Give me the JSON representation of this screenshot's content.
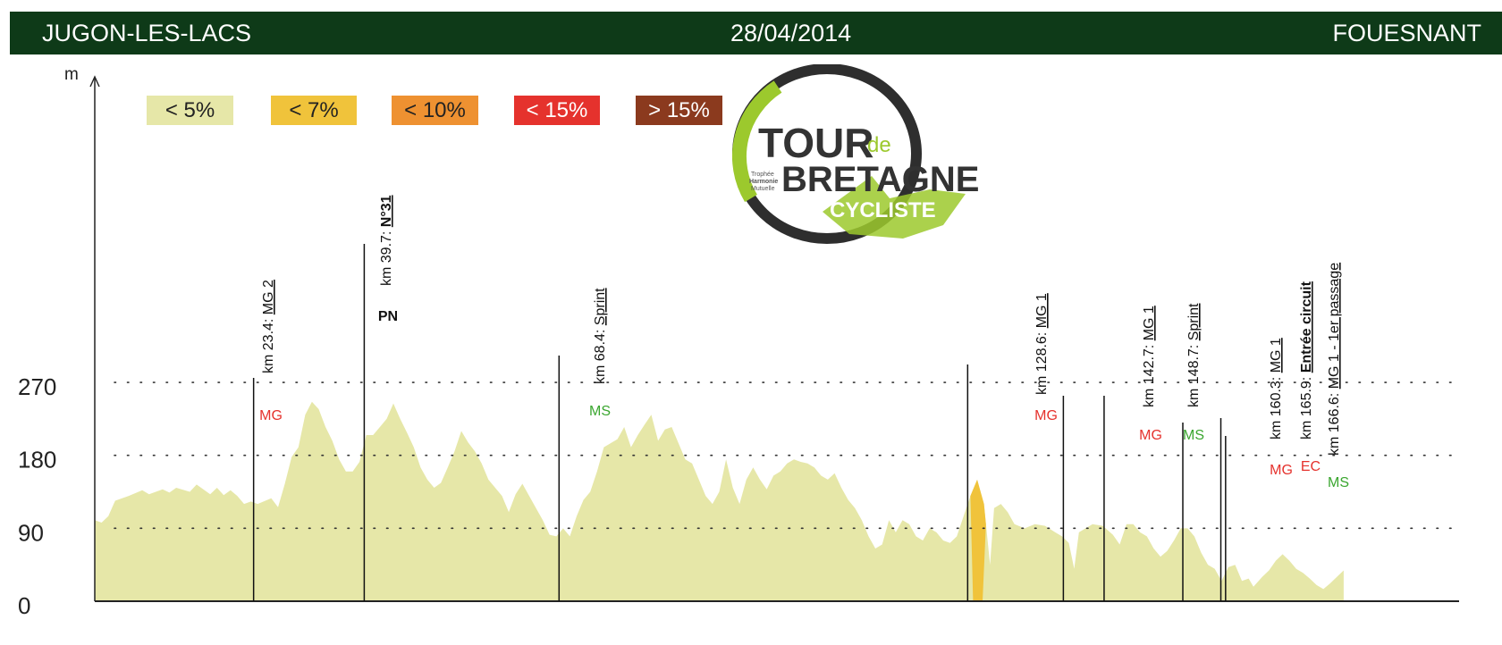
{
  "header": {
    "start": "JUGON-LES-LACS",
    "date": "28/04/2014",
    "finish": "FOUESNANT"
  },
  "colors": {
    "header_bg": "#0e3a18",
    "profile": "#e6e7a8",
    "steep_segment": "#f0c33b",
    "MG": "#e5322d",
    "MS": "#3aa62f",
    "EC": "#e5322d"
  },
  "legend": [
    {
      "label": "< 5%",
      "color": "#e6e7a8",
      "text": "#222"
    },
    {
      "label": "< 7%",
      "color": "#f0c33b",
      "text": "#222"
    },
    {
      "label": "< 10%",
      "color": "#ee9131",
      "text": "#222"
    },
    {
      "label": "< 15%",
      "color": "#e5322d",
      "text": "#fff"
    },
    {
      "label": "> 15%",
      "color": "#8b3a1e",
      "text": "#fff"
    }
  ],
  "logo": {
    "line1": "TOUR",
    "de": "de",
    "line2": "BRETAGNE",
    "line3": "CYCLISTE",
    "small": [
      "Trophée",
      "Harmonie",
      "Mutuelle"
    ]
  },
  "chart_data": {
    "type": "area",
    "title": "",
    "ylabel": "m",
    "xlabel": "",
    "ylim": [
      0,
      330
    ],
    "xlim": [
      0,
      201
    ],
    "yticks": [
      0,
      90,
      180,
      270
    ],
    "grid": "dotted at 90, 180, 270",
    "x_unit": "km",
    "profile": [
      [
        0,
        100
      ],
      [
        1,
        97
      ],
      [
        2,
        105
      ],
      [
        3,
        124
      ],
      [
        5,
        130
      ],
      [
        7,
        137
      ],
      [
        8,
        132
      ],
      [
        10,
        138
      ],
      [
        11,
        134
      ],
      [
        12,
        140
      ],
      [
        14,
        135
      ],
      [
        15,
        144
      ],
      [
        17,
        132
      ],
      [
        18,
        140
      ],
      [
        19,
        131
      ],
      [
        20,
        137
      ],
      [
        21,
        130
      ],
      [
        22,
        120
      ],
      [
        23,
        123
      ],
      [
        24,
        120
      ],
      [
        26,
        127
      ],
      [
        27,
        116
      ],
      [
        28,
        145
      ],
      [
        29,
        178
      ],
      [
        30,
        190
      ],
      [
        31,
        230
      ],
      [
        32,
        246
      ],
      [
        33,
        237
      ],
      [
        34,
        215
      ],
      [
        35,
        198
      ],
      [
        36,
        175
      ],
      [
        37,
        160
      ],
      [
        38,
        160
      ],
      [
        39,
        172
      ],
      [
        40,
        205
      ],
      [
        41,
        205
      ],
      [
        42,
        215
      ],
      [
        43,
        225
      ],
      [
        44,
        244
      ],
      [
        45,
        225
      ],
      [
        46,
        208
      ],
      [
        47,
        190
      ],
      [
        48,
        165
      ],
      [
        49,
        150
      ],
      [
        50,
        140
      ],
      [
        51,
        146
      ],
      [
        52,
        165
      ],
      [
        53,
        185
      ],
      [
        54,
        210
      ],
      [
        55,
        196
      ],
      [
        56,
        185
      ],
      [
        57,
        170
      ],
      [
        58,
        150
      ],
      [
        59,
        140
      ],
      [
        60,
        130
      ],
      [
        61,
        110
      ],
      [
        62,
        132
      ],
      [
        63,
        145
      ],
      [
        64,
        130
      ],
      [
        65,
        115
      ],
      [
        66,
        100
      ],
      [
        67,
        82
      ],
      [
        68,
        80
      ],
      [
        69,
        90
      ],
      [
        70,
        80
      ],
      [
        71,
        105
      ],
      [
        72,
        125
      ],
      [
        73,
        135
      ],
      [
        74,
        160
      ],
      [
        75,
        190
      ],
      [
        76,
        195
      ],
      [
        77,
        200
      ],
      [
        78,
        215
      ],
      [
        79,
        190
      ],
      [
        80,
        205
      ],
      [
        81,
        218
      ],
      [
        82,
        230
      ],
      [
        83,
        198
      ],
      [
        84,
        212
      ],
      [
        85,
        215
      ],
      [
        86,
        195
      ],
      [
        87,
        175
      ],
      [
        88,
        170
      ],
      [
        89,
        150
      ],
      [
        90,
        130
      ],
      [
        91,
        120
      ],
      [
        92,
        135
      ],
      [
        93,
        175
      ],
      [
        94,
        140
      ],
      [
        95,
        120
      ],
      [
        96,
        150
      ],
      [
        97,
        165
      ],
      [
        98,
        150
      ],
      [
        99,
        138
      ],
      [
        100,
        155
      ],
      [
        101,
        160
      ],
      [
        102,
        170
      ],
      [
        103,
        175
      ],
      [
        104,
        172
      ],
      [
        105,
        170
      ],
      [
        106,
        165
      ],
      [
        107,
        155
      ],
      [
        108,
        150
      ],
      [
        109,
        158
      ],
      [
        110,
        140
      ],
      [
        111,
        125
      ],
      [
        112,
        115
      ],
      [
        113,
        100
      ],
      [
        114,
        80
      ],
      [
        115,
        65
      ],
      [
        116,
        70
      ],
      [
        117,
        100
      ],
      [
        118,
        85
      ],
      [
        119,
        100
      ],
      [
        120,
        95
      ],
      [
        121,
        80
      ],
      [
        122,
        75
      ],
      [
        123,
        90
      ],
      [
        124,
        85
      ],
      [
        125,
        75
      ],
      [
        126,
        72
      ],
      [
        127,
        80
      ],
      [
        128,
        105
      ],
      [
        129,
        130
      ],
      [
        130,
        150
      ],
      [
        131,
        120
      ],
      [
        131.3,
        95
      ],
      [
        131.9,
        45
      ],
      [
        132.5,
        115
      ],
      [
        133.5,
        120
      ],
      [
        134.5,
        110
      ],
      [
        135.5,
        95
      ],
      [
        137,
        90
      ],
      [
        138.5,
        95
      ],
      [
        140,
        93
      ],
      [
        141.5,
        85
      ],
      [
        142.5,
        80
      ],
      [
        143.5,
        72
      ],
      [
        144.3,
        40
      ],
      [
        145,
        85
      ],
      [
        147,
        95
      ],
      [
        148.5,
        93
      ],
      [
        150,
        82
      ],
      [
        151,
        70
      ],
      [
        152,
        95
      ],
      [
        153,
        95
      ],
      [
        154,
        85
      ],
      [
        155,
        80
      ],
      [
        156,
        65
      ],
      [
        157,
        55
      ],
      [
        158,
        62
      ],
      [
        159,
        75
      ],
      [
        160,
        90
      ],
      [
        161,
        90
      ],
      [
        162,
        80
      ],
      [
        163,
        60
      ],
      [
        164,
        45
      ],
      [
        165,
        40
      ],
      [
        166,
        25
      ],
      [
        167,
        42
      ],
      [
        168,
        45
      ],
      [
        169,
        25
      ],
      [
        170,
        28
      ],
      [
        170.7,
        18
      ],
      [
        172,
        30
      ],
      [
        173,
        38
      ],
      [
        174,
        50
      ],
      [
        175,
        58
      ],
      [
        176,
        50
      ],
      [
        177,
        40
      ],
      [
        178,
        35
      ],
      [
        179,
        28
      ],
      [
        180,
        20
      ],
      [
        181,
        15
      ],
      [
        182,
        22
      ],
      [
        183,
        30
      ],
      [
        184,
        38
      ]
    ],
    "steep_segment": {
      "color": "#f0c33b",
      "from_km": 129.4,
      "to_km": 130.8
    },
    "markers": [
      {
        "km": 23.4,
        "lines": [
          "km 23.4:",
          "MG 2"
        ],
        "underline": "MG 2",
        "tag": "MG",
        "tag_color": "#e5322d",
        "height": 250
      },
      {
        "km": 39.7,
        "lines": [
          "km 39.7:",
          "N°31"
        ],
        "underline": "N°31",
        "bold": "N°31",
        "tag": "PN",
        "tag_color": "#111",
        "height": 400
      },
      {
        "km": 68.4,
        "lines": [
          "km 68.4:",
          "Sprint"
        ],
        "underline": "Sprint",
        "tag": "MS",
        "tag_color": "#3aa62f",
        "height": 275
      },
      {
        "km": 128.6,
        "lines": [
          "km 128.6:",
          "MG 1"
        ],
        "underline": "MG 1",
        "tag": "MG",
        "tag_color": "#e5322d",
        "height": 265
      },
      {
        "km": 142.7,
        "lines": [
          "km 142.7:",
          "MG 1"
        ],
        "underline": "MG 1",
        "tag": "MG",
        "tag_color": "#e5322d",
        "height": 230
      },
      {
        "km": 148.7,
        "lines": [
          "km 148.7:",
          "Sprint"
        ],
        "underline": "Sprint",
        "tag": "MS",
        "tag_color": "#3aa62f",
        "height": 230
      },
      {
        "km": 160.3,
        "lines": [
          "km 160.3:",
          "MG 1"
        ],
        "underline": "MG 1",
        "tag": "MG",
        "tag_color": "#e5322d",
        "height": 200
      },
      {
        "km": 165.9,
        "lines": [
          "km 165.9:",
          "Entrée circuit"
        ],
        "underline": "Entrée circuit",
        "bold": "Entrée circuit",
        "tag": "EC",
        "tag_color": "#e5322d",
        "height": 205
      },
      {
        "km": 166.6,
        "lines": [
          "km 166.6:",
          "MG 1 - 1er passage"
        ],
        "underline": "MG 1 - 1er passage",
        "tag": "MS",
        "tag_color": "#3aa62f",
        "height": 185
      }
    ]
  }
}
